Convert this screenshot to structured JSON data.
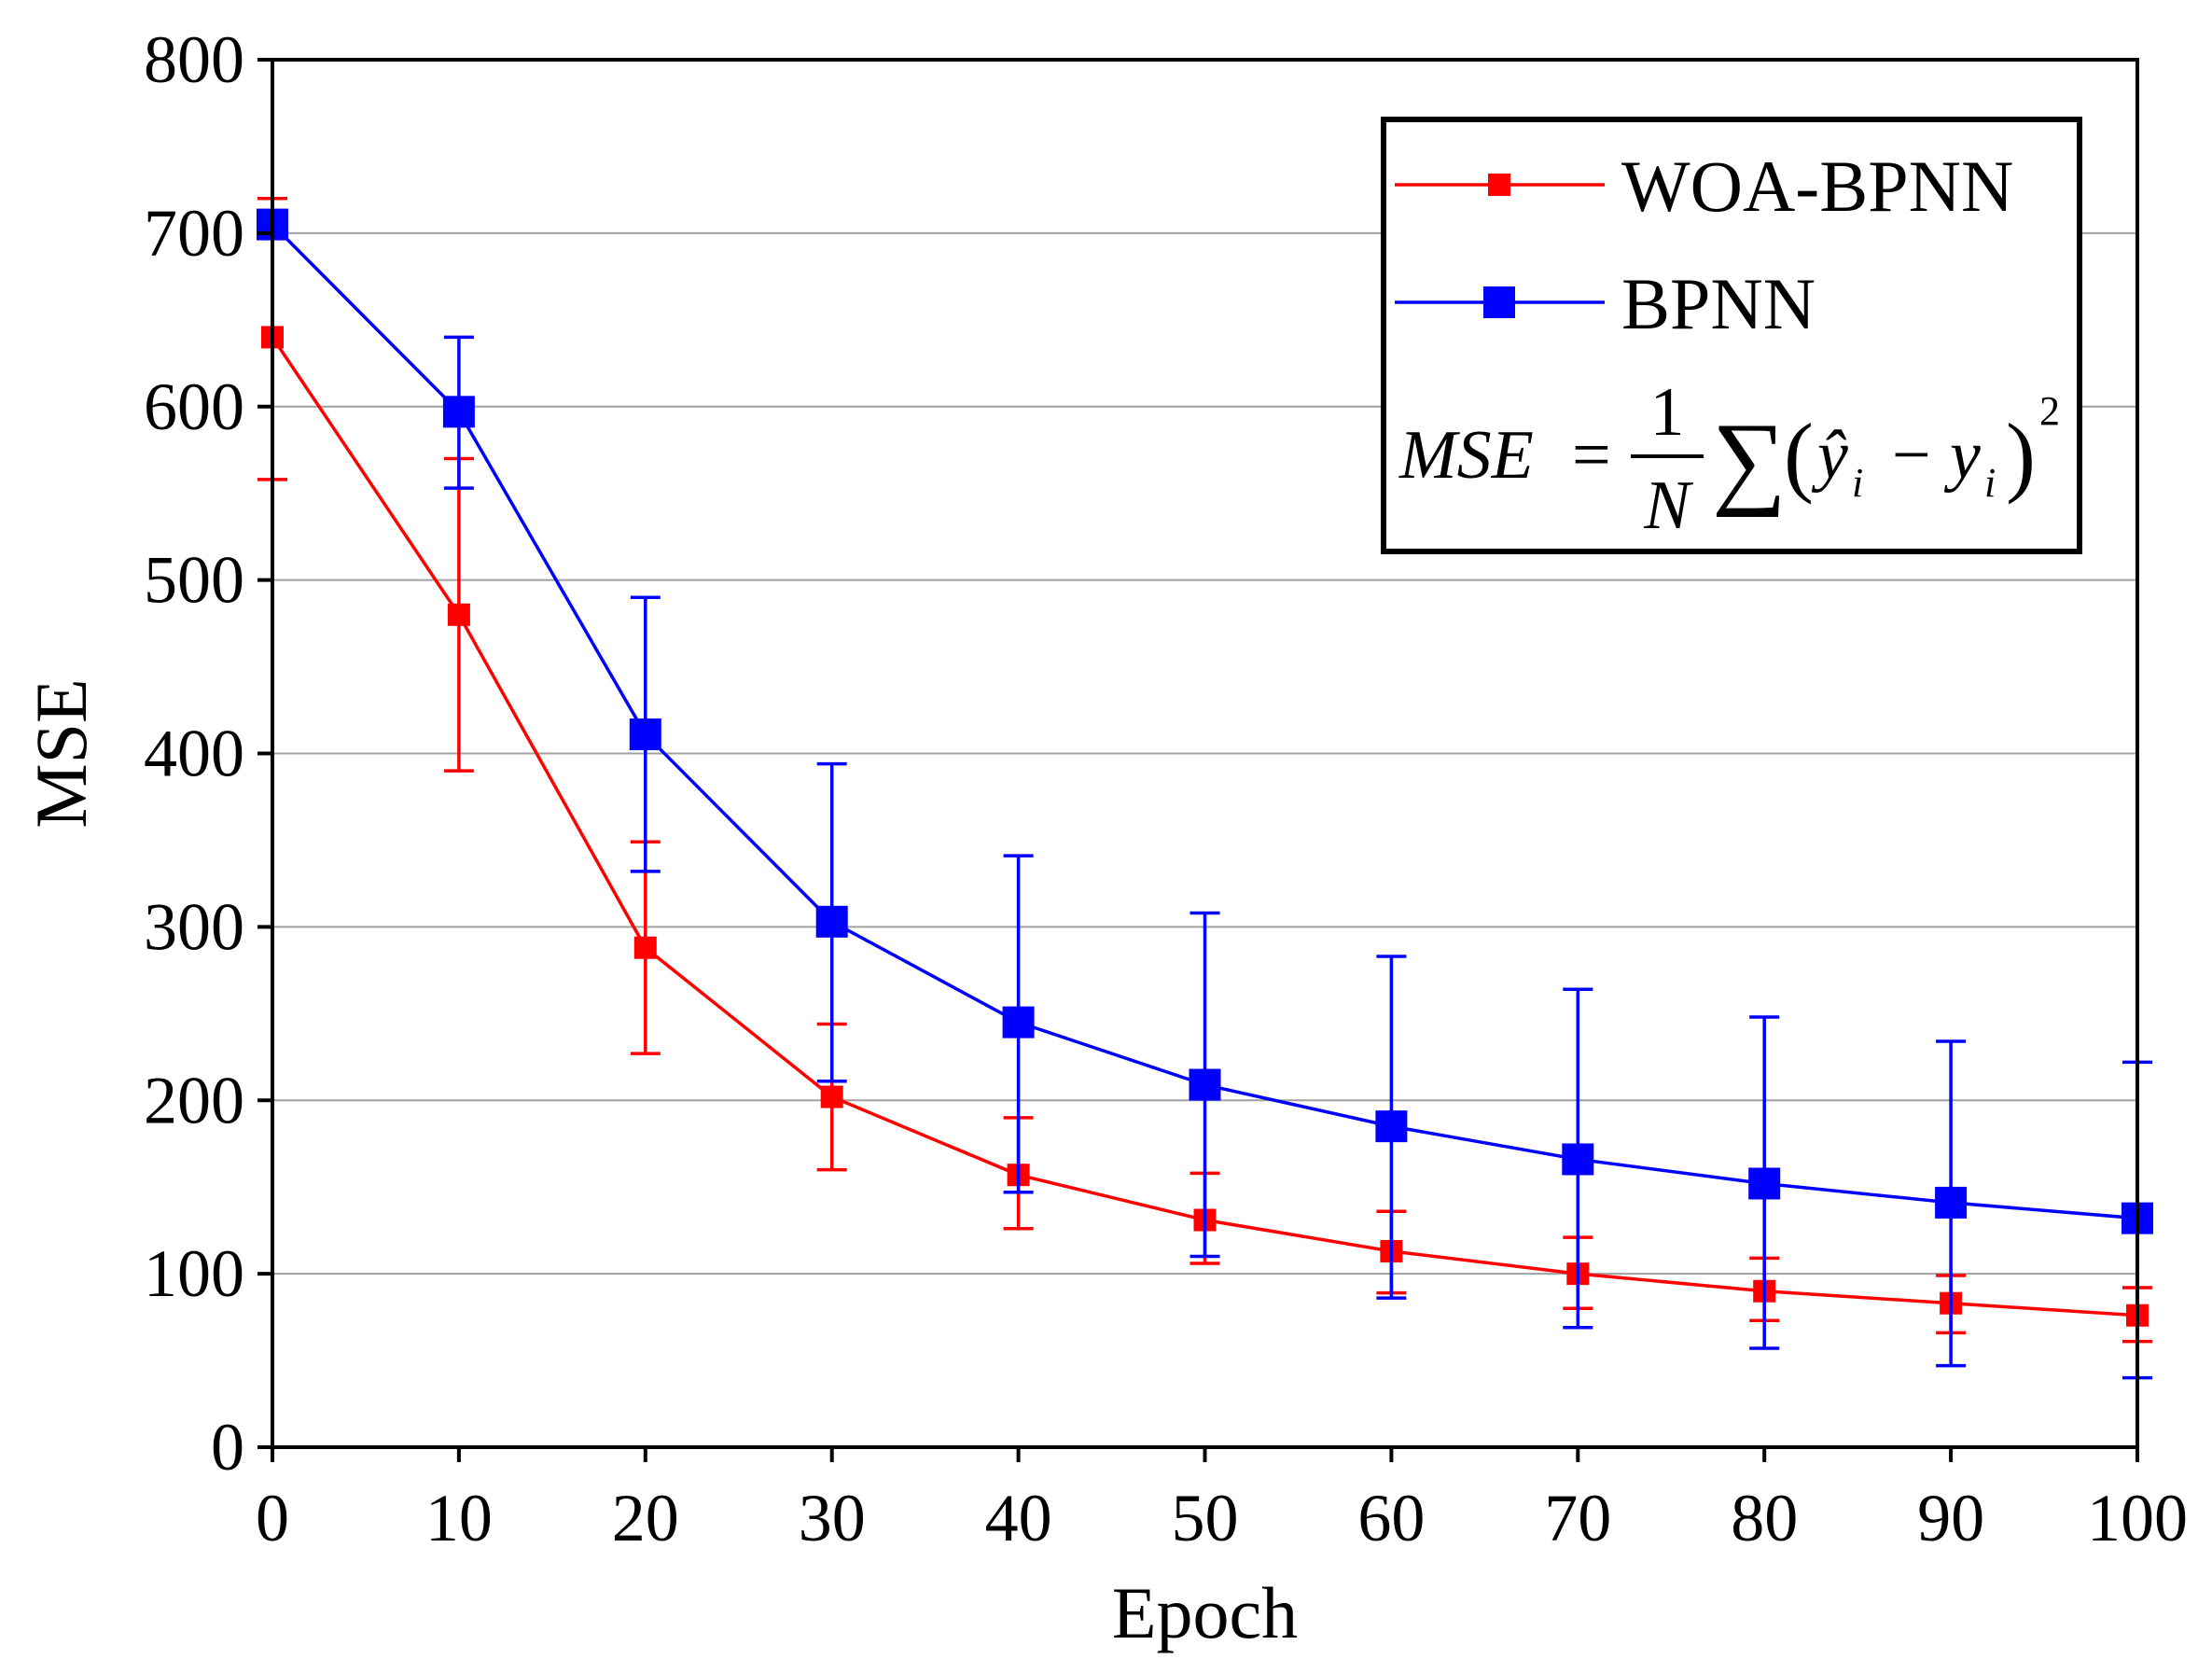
{
  "chart_data": {
    "type": "line",
    "title": "",
    "xlabel": "Epoch",
    "ylabel": "MSE",
    "xlim": [
      0,
      100
    ],
    "ylim": [
      0,
      800
    ],
    "x_ticks": [
      0,
      10,
      20,
      30,
      40,
      50,
      60,
      70,
      80,
      90,
      100
    ],
    "y_ticks": [
      0,
      100,
      200,
      300,
      400,
      500,
      600,
      700,
      800
    ],
    "x_tick_labels": [
      "0",
      "10",
      "20",
      "30",
      "40",
      "50",
      "60",
      "70",
      "80",
      "90",
      "100"
    ],
    "y_tick_labels": [
      "0",
      "100",
      "200",
      "300",
      "400",
      "500",
      "600",
      "700",
      "800"
    ],
    "grid": "horizontal",
    "legend_position": "top-right",
    "x": [
      0,
      10,
      20,
      30,
      40,
      50,
      60,
      70,
      80,
      90,
      100
    ],
    "series": [
      {
        "name": "WOA-BPNN",
        "color": "#ff0000",
        "values": [
          640,
          480,
          288,
          202,
          157,
          131,
          113,
          100,
          90,
          83,
          76
        ],
        "err_low": [
          558,
          390,
          227,
          160,
          126,
          106,
          89,
          80,
          73,
          66,
          61
        ],
        "err_high": [
          720,
          570,
          349,
          244,
          190,
          158,
          136,
          121,
          109,
          99,
          92
        ]
      },
      {
        "name": "BPNN",
        "color": "#0000ff",
        "values": [
          705,
          597,
          411,
          303,
          245,
          209,
          185,
          166,
          152,
          141,
          132
        ],
        "err_low": [
          705,
          553,
          332,
          211,
          147,
          110,
          86,
          69,
          57,
          47,
          40
        ],
        "err_high": [
          705,
          640,
          490,
          394,
          341,
          308,
          283,
          264,
          248,
          234,
          222
        ]
      }
    ],
    "annotation": {
      "lhs": "MSE",
      "equals": "=",
      "numerator": "1",
      "denominator": "N",
      "sum": "∑",
      "left_paren": "(",
      "term1": "ŷ",
      "subscript1": "i",
      "minus": "−",
      "term2": "y",
      "subscript2": "i",
      "right_paren": ")",
      "exponent": "2"
    }
  }
}
